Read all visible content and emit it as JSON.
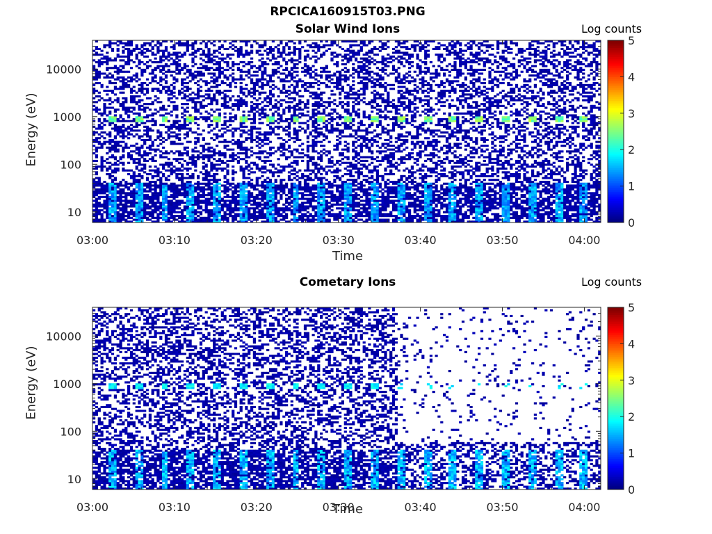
{
  "figure": {
    "title": "RPCICA160915T03.PNG"
  },
  "colorbar": {
    "label": "Log counts",
    "ticks": [
      "0",
      "1",
      "2",
      "3",
      "4",
      "5"
    ],
    "range": [
      0,
      5
    ],
    "colormap": "jet"
  },
  "chart_data": [
    {
      "type": "heatmap",
      "title": "Solar Wind Ions",
      "xlabel": "Time",
      "ylabel": "Energy (eV)",
      "y_scale": "log",
      "ylim": [
        6,
        40000
      ],
      "xlim": [
        "03:00",
        "04:02"
      ],
      "x_ticks": [
        "03:00",
        "03:10",
        "03:20",
        "03:30",
        "03:40",
        "03:50",
        "04:00"
      ],
      "y_ticks": [
        "10",
        "100",
        "1000",
        "10000"
      ],
      "z_label": "Log counts",
      "z_range": [
        0,
        5
      ],
      "features": [
        {
          "description_band": "periodic peaks near 1000 eV",
          "energy": 900,
          "log_counts": 2.5,
          "period_min": 3.2
        },
        {
          "description_band": "low energy band",
          "energy": 15,
          "log_counts": 1.5,
          "period_min": 3.2
        }
      ],
      "background_log_counts": 0.2,
      "sparse_region_start": null
    },
    {
      "type": "heatmap",
      "title": "Cometary Ions",
      "xlabel": "Time",
      "ylabel": "Energy (eV)",
      "y_scale": "log",
      "ylim": [
        6,
        40000
      ],
      "xlim": [
        "03:00",
        "04:02"
      ],
      "x_ticks": [
        "03:00",
        "03:10",
        "03:20",
        "03:30",
        "03:40",
        "03:50",
        "04:00"
      ],
      "y_ticks": [
        "10",
        "100",
        "1000",
        "10000"
      ],
      "z_label": "Log counts",
      "z_range": [
        0,
        5
      ],
      "features": [
        {
          "description_band": "periodic peaks near 1000 eV",
          "energy": 900,
          "log_counts": 1.8,
          "period_min": 3.2
        },
        {
          "description_band": "low energy band",
          "energy": 15,
          "log_counts": 1.6,
          "period_min": 3.2
        }
      ],
      "background_log_counts": 0.2,
      "sparse_region_start": "03:37"
    }
  ]
}
